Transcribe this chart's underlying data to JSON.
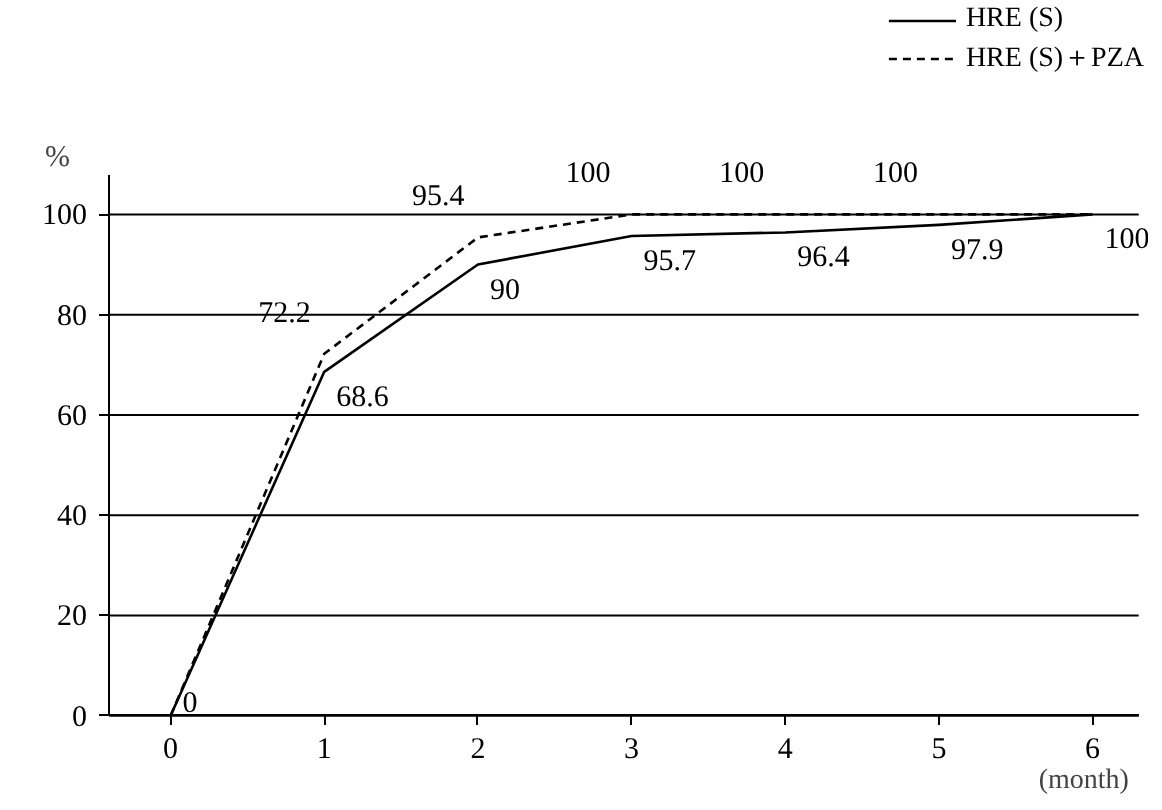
{
  "chart_data": {
    "type": "line",
    "ylabel": "%",
    "xlabel": "(month)",
    "x": [
      0,
      1,
      2,
      3,
      4,
      5,
      6
    ],
    "series": [
      {
        "name": "HRE (S)",
        "color": "#000000",
        "line_style": "solid",
        "values": [
          0,
          68.6,
          90,
          95.7,
          96.4,
          97.9,
          100
        ],
        "value_labels": [
          "0",
          "68.6",
          "90",
          "95.7",
          "96.4",
          "97.9",
          "100"
        ]
      },
      {
        "name": "HRE (S)＋PZA",
        "color": "#000000",
        "line_style": "dashed",
        "values": [
          0,
          72.2,
          95.4,
          100,
          100,
          100,
          100
        ],
        "value_labels": [
          null,
          "72.2",
          "95.4",
          "100",
          "100",
          "100",
          null
        ]
      }
    ],
    "xlim": [
      -0.4,
      6.3
    ],
    "ylim": [
      0,
      108
    ],
    "xticks": [
      0,
      1,
      2,
      3,
      4,
      5,
      6
    ],
    "yticks": [
      0,
      20,
      40,
      60,
      80,
      100
    ],
    "grid": "y",
    "legend": "top right"
  }
}
